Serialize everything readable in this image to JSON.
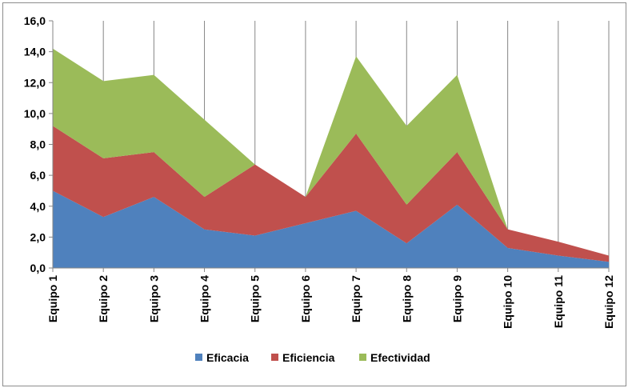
{
  "chart_data": {
    "type": "area",
    "stacked": true,
    "categories": [
      "Equipo 1",
      "Equipo 2",
      "Equipo 3",
      "Equipo 4",
      "Equipo 5",
      "Equipo 6",
      "Equipo 7",
      "Equipo 8",
      "Equipo 9",
      "Equipo 10",
      "Equipo 11",
      "Equipo 12"
    ],
    "series": [
      {
        "name": "Eficacia",
        "color": "#4f81bd",
        "values": [
          5.0,
          3.3,
          4.6,
          2.5,
          2.1,
          2.9,
          3.7,
          1.6,
          4.1,
          1.3,
          0.8,
          0.4
        ]
      },
      {
        "name": "Eficiencia",
        "color": "#c0504d",
        "values": [
          4.2,
          3.8,
          2.9,
          2.1,
          4.6,
          1.7,
          5.0,
          2.5,
          3.4,
          1.2,
          0.9,
          0.4
        ]
      },
      {
        "name": "Efectividad",
        "color": "#9bbb59",
        "values": [
          5.0,
          5.0,
          5.0,
          5.0,
          0.0,
          0.0,
          5.0,
          5.1,
          5.0,
          0.0,
          0.0,
          0.0
        ]
      }
    ],
    "yticks": [
      "0,0",
      "2,0",
      "4,0",
      "6,0",
      "8,0",
      "10,0",
      "12,0",
      "14,0",
      "16,0"
    ],
    "ylim": [
      0,
      16
    ],
    "xlabel": "",
    "ylabel": "",
    "title": "",
    "grid": "vertical",
    "legend_position": "bottom"
  }
}
